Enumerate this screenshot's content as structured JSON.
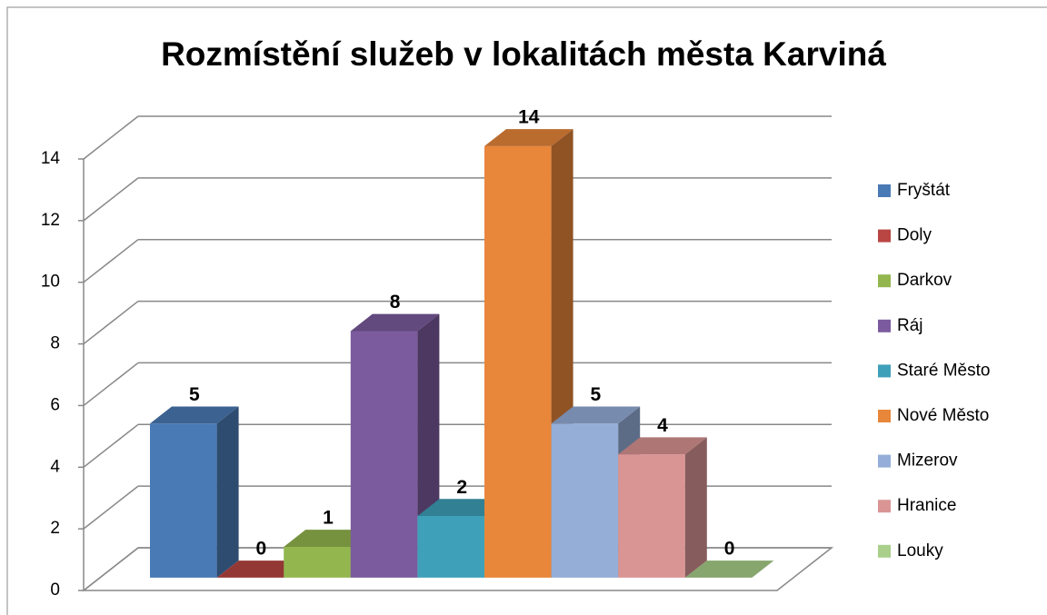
{
  "chart_data": {
    "type": "bar3d",
    "title": "Rozmístění služeb v lokalitách města Karviná",
    "categories": [
      "Fryštát",
      "Doly",
      "Darkov",
      "Ráj",
      "Staré Město",
      "Nové Město",
      "Mizerov",
      "Hranice",
      "Louky"
    ],
    "values": [
      5,
      0,
      1,
      8,
      2,
      14,
      5,
      4,
      0
    ],
    "colors": [
      "#4a7ab5",
      "#b94643",
      "#93b64f",
      "#7b5b9d",
      "#3fa0b9",
      "#e8863a",
      "#94aed8",
      "#d99594",
      "#a9cf8a"
    ],
    "ylim": [
      0,
      14
    ],
    "yticks": [
      0,
      2,
      4,
      6,
      8,
      10,
      12,
      14
    ],
    "grid": true,
    "legend": "right"
  }
}
